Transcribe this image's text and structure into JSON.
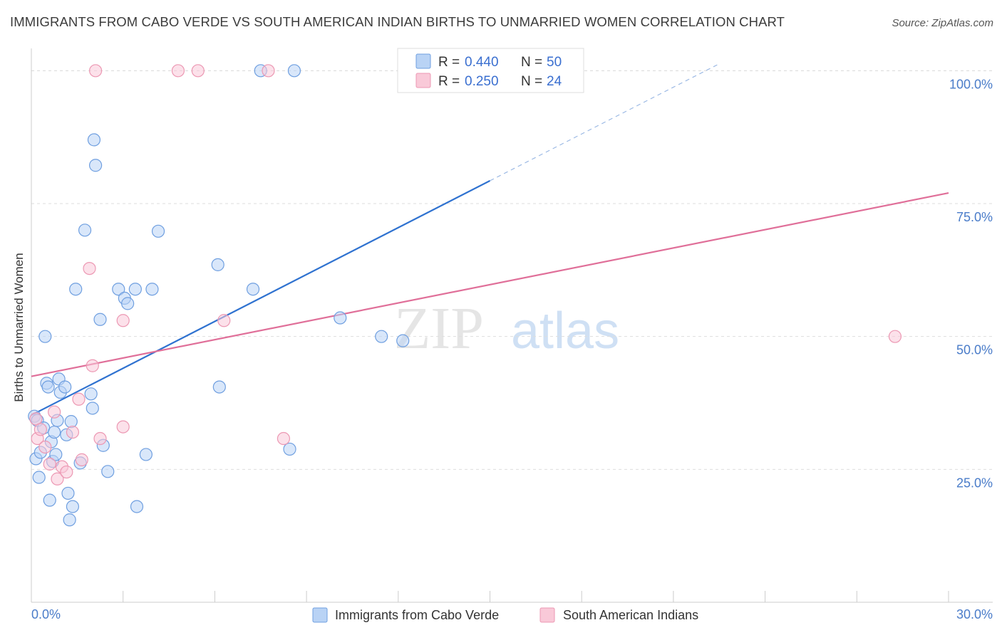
{
  "header": {
    "title": "IMMIGRANTS FROM CABO VERDE VS SOUTH AMERICAN INDIAN BIRTHS TO UNMARRIED WOMEN CORRELATION CHART",
    "source": "Source: ZipAtlas.com"
  },
  "colors": {
    "blue_fill": "#b9d3f5",
    "blue_stroke": "#6f9fe0",
    "blue_line": "#2f72d0",
    "pink_fill": "#f9c9d8",
    "pink_stroke": "#ec98b3",
    "pink_line": "#e06f99",
    "tick_text": "#4a7cc9",
    "grid": "#dddddd"
  },
  "watermark": {
    "zip": "ZIP",
    "atlas": "atlas"
  },
  "legend": {
    "rows": [
      {
        "r_label": "R = ",
        "r_value": "0.440",
        "n_label": "N = ",
        "n_value": "50"
      },
      {
        "r_label": "R = ",
        "r_value": "0.250",
        "n_label": "N = ",
        "n_value": "24"
      }
    ]
  },
  "chart_data": {
    "type": "scatter",
    "title": "IMMIGRANTS FROM CABO VERDE VS SOUTH AMERICAN INDIAN BIRTHS TO UNMARRIED WOMEN CORRELATION CHART",
    "xlabel": "",
    "ylabel": "Births to Unmarried Women",
    "xlim": [
      0,
      30
    ],
    "ylim": [
      0,
      105
    ],
    "x_tick_labels": [
      "0.0%",
      "30.0%"
    ],
    "y_ticks": [
      25,
      50,
      75,
      100
    ],
    "y_tick_labels": [
      "25.0%",
      "50.0%",
      "75.0%",
      "100.0%"
    ],
    "series": [
      {
        "name": "Immigrants from Cabo Verde",
        "color": "blue",
        "r": 0.44,
        "n": 50,
        "trend": {
          "x0": 0,
          "y0": 35.2,
          "x1": 15,
          "y1": 79.3,
          "dash_to_x": 22.5,
          "dash_to_y": 101.3
        },
        "points": [
          [
            0.1,
            35.0
          ],
          [
            0.15,
            27.0
          ],
          [
            0.2,
            34.2
          ],
          [
            0.25,
            23.5
          ],
          [
            0.3,
            28.2
          ],
          [
            0.4,
            32.8
          ],
          [
            0.45,
            50.0
          ],
          [
            0.5,
            41.2
          ],
          [
            0.55,
            40.5
          ],
          [
            0.6,
            19.2
          ],
          [
            0.65,
            30.2
          ],
          [
            0.7,
            26.5
          ],
          [
            0.75,
            32.0
          ],
          [
            0.8,
            27.8
          ],
          [
            0.85,
            34.2
          ],
          [
            0.9,
            42.0
          ],
          [
            0.95,
            39.5
          ],
          [
            1.1,
            40.5
          ],
          [
            1.15,
            31.5
          ],
          [
            1.2,
            20.5
          ],
          [
            1.25,
            15.5
          ],
          [
            1.3,
            34.0
          ],
          [
            1.35,
            18.0
          ],
          [
            1.45,
            58.9
          ],
          [
            1.6,
            26.2
          ],
          [
            1.75,
            70.0
          ],
          [
            1.95,
            39.2
          ],
          [
            2.0,
            36.5
          ],
          [
            2.05,
            87.0
          ],
          [
            2.1,
            82.2
          ],
          [
            2.25,
            53.2
          ],
          [
            2.35,
            29.5
          ],
          [
            2.5,
            24.6
          ],
          [
            2.85,
            58.9
          ],
          [
            3.05,
            57.2
          ],
          [
            3.15,
            56.2
          ],
          [
            3.4,
            58.9
          ],
          [
            3.45,
            18.0
          ],
          [
            3.75,
            27.8
          ],
          [
            3.95,
            58.9
          ],
          [
            4.15,
            69.8
          ],
          [
            6.1,
            63.5
          ],
          [
            6.15,
            40.5
          ],
          [
            7.25,
            58.9
          ],
          [
            7.5,
            100.0
          ],
          [
            8.45,
            28.8
          ],
          [
            8.6,
            100.0
          ],
          [
            10.1,
            53.5
          ],
          [
            11.45,
            50.0
          ],
          [
            12.15,
            49.2
          ]
        ]
      },
      {
        "name": "South American Indians",
        "color": "pink",
        "r": 0.25,
        "n": 24,
        "trend": {
          "x0": 0,
          "y0": 42.5,
          "x1": 30,
          "y1": 77.0
        },
        "points": [
          [
            0.15,
            34.5
          ],
          [
            0.2,
            30.8
          ],
          [
            0.3,
            32.5
          ],
          [
            0.45,
            29.2
          ],
          [
            0.6,
            26.0
          ],
          [
            0.75,
            35.8
          ],
          [
            0.85,
            23.2
          ],
          [
            1.0,
            25.5
          ],
          [
            1.15,
            24.5
          ],
          [
            1.35,
            32.0
          ],
          [
            1.55,
            38.2
          ],
          [
            1.65,
            26.8
          ],
          [
            1.9,
            62.8
          ],
          [
            2.0,
            44.5
          ],
          [
            2.25,
            30.8
          ],
          [
            3.0,
            53.0
          ],
          [
            3.0,
            33.0
          ],
          [
            2.1,
            100.0
          ],
          [
            4.8,
            100.0
          ],
          [
            5.45,
            100.0
          ],
          [
            7.75,
            100.0
          ],
          [
            6.3,
            53.0
          ],
          [
            8.25,
            30.8
          ],
          [
            28.25,
            50.0
          ]
        ]
      }
    ]
  }
}
